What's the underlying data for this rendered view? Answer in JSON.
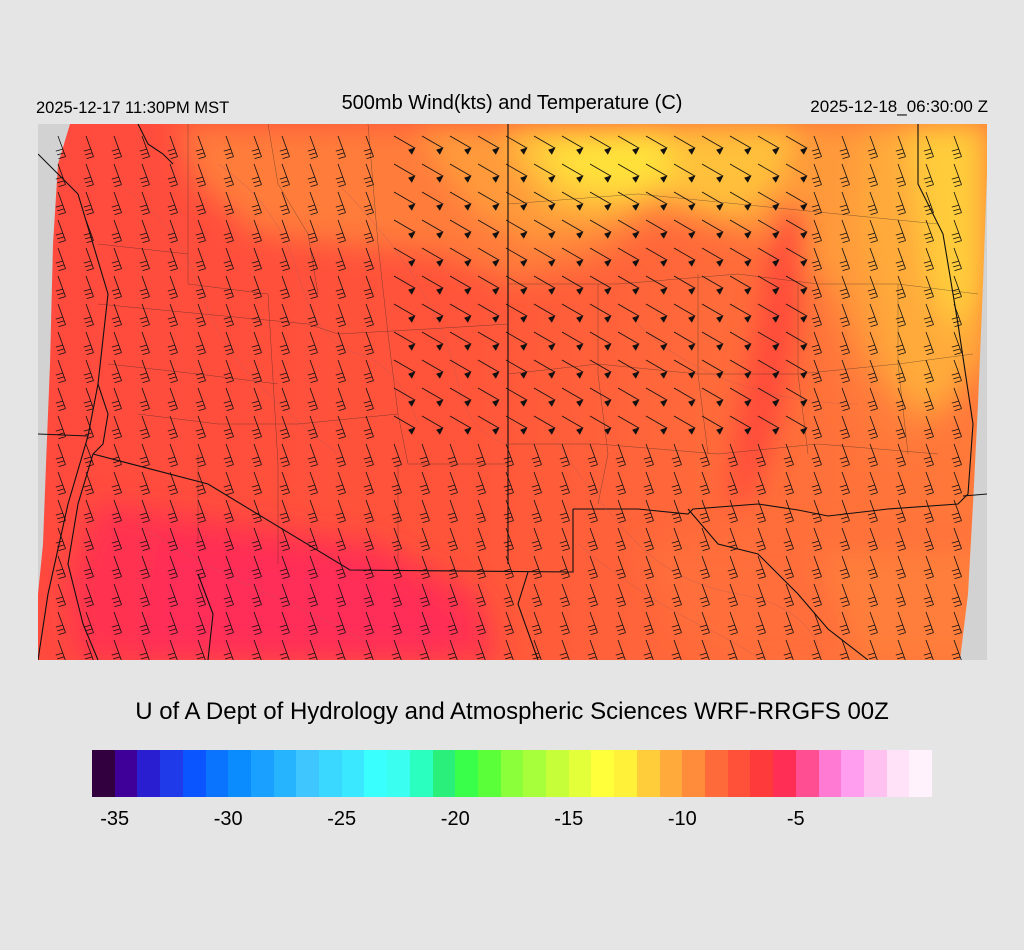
{
  "header": {
    "local_time": "2025-12-17 11:30PM MST",
    "title": "500mb Wind(kts) and Temperature (C)",
    "valid_time": "2025-12-18_06:30:00 Z"
  },
  "credit": "U of A Dept of Hydrology and Atmospheric Sciences WRF-RRGFS 00Z",
  "colorbar": {
    "colors": [
      "#33003f",
      "#3f0099",
      "#2a1fd0",
      "#1f3ae8",
      "#0a55ff",
      "#0a74ff",
      "#0a8cff",
      "#1aa0ff",
      "#26b4ff",
      "#40c6ff",
      "#3ad8ff",
      "#3ae8ff",
      "#3affff",
      "#3afff0",
      "#2affc0",
      "#2aef7a",
      "#3aff4a",
      "#5aff3a",
      "#8aff3a",
      "#a6ff3a",
      "#c6ff3a",
      "#e2ff3a",
      "#ffff3a",
      "#fff03a",
      "#ffcc3a",
      "#ffaa3a",
      "#ff8c3a",
      "#ff6a3a",
      "#ff503a",
      "#ff3a3a",
      "#ff2e54",
      "#ff4e92",
      "#ff7ad2",
      "#ff9eef",
      "#ffc2f0",
      "#ffe2f8",
      "#fff2fd"
    ],
    "ticks": [
      "-35",
      "-30",
      "-25",
      "-20",
      "-15",
      "-10",
      "-5"
    ]
  },
  "map": {
    "field": "500mb temperature (C)",
    "temp_range_shown": [
      -14,
      -7
    ],
    "wind_barb_units": "kts"
  }
}
